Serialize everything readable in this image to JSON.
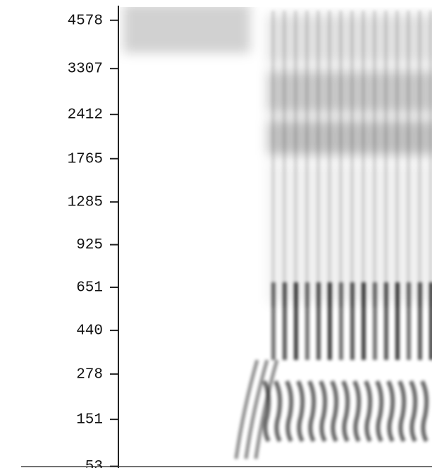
{
  "chart_data": {
    "type": "spectrogram",
    "yscale": "erb",
    "ylim": [
      50,
      5000
    ],
    "yticks": [
      53,
      151,
      278,
      440,
      651,
      925,
      1285,
      1765,
      2412,
      3307,
      4578
    ],
    "color": "#000000"
  }
}
